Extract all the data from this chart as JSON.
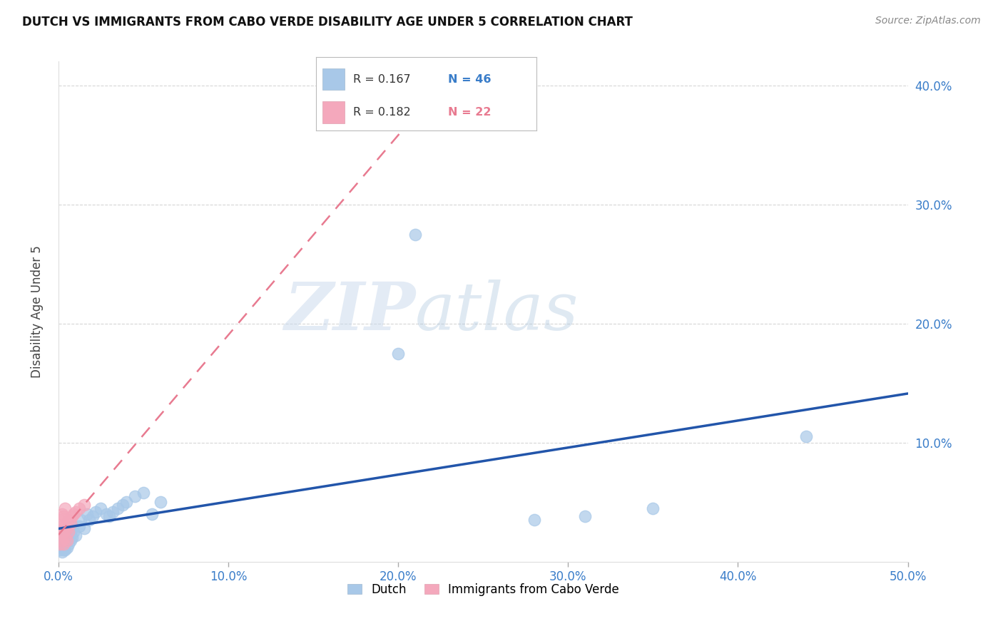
{
  "title": "DUTCH VS IMMIGRANTS FROM CABO VERDE DISABILITY AGE UNDER 5 CORRELATION CHART",
  "source": "Source: ZipAtlas.com",
  "ylabel": "Disability Age Under 5",
  "xlabel_dutch": "Dutch",
  "xlabel_cabo": "Immigrants from Cabo Verde",
  "x_min": 0.0,
  "x_max": 0.5,
  "y_min": 0.0,
  "y_max": 0.42,
  "x_ticks": [
    0.0,
    0.1,
    0.2,
    0.3,
    0.4,
    0.5
  ],
  "x_tick_labels": [
    "0.0%",
    "10.0%",
    "20.0%",
    "30.0%",
    "40.0%",
    "50.0%"
  ],
  "y_ticks": [
    0.1,
    0.2,
    0.3,
    0.4
  ],
  "y_tick_labels": [
    "10.0%",
    "20.0%",
    "30.0%",
    "40.0%"
  ],
  "dutch_color": "#a8c8e8",
  "cabo_color": "#f4a8bc",
  "trend_dutch_color": "#2255aa",
  "trend_cabo_color": "#e87a90",
  "legend_r_dutch": "R = 0.167",
  "legend_n_dutch": "N = 46",
  "legend_r_cabo": "R = 0.182",
  "legend_n_cabo": "N = 22",
  "dutch_x": [
    0.001,
    0.001,
    0.002,
    0.002,
    0.002,
    0.003,
    0.003,
    0.003,
    0.004,
    0.004,
    0.004,
    0.005,
    0.005,
    0.005,
    0.006,
    0.006,
    0.007,
    0.007,
    0.008,
    0.008,
    0.009,
    0.01,
    0.012,
    0.013,
    0.015,
    0.017,
    0.018,
    0.02,
    0.022,
    0.025,
    0.028,
    0.03,
    0.032,
    0.035,
    0.038,
    0.04,
    0.045,
    0.05,
    0.055,
    0.06,
    0.2,
    0.21,
    0.44,
    0.28,
    0.31,
    0.35
  ],
  "dutch_y": [
    0.01,
    0.015,
    0.008,
    0.012,
    0.02,
    0.01,
    0.015,
    0.022,
    0.01,
    0.018,
    0.025,
    0.012,
    0.02,
    0.028,
    0.015,
    0.022,
    0.018,
    0.025,
    0.02,
    0.03,
    0.025,
    0.022,
    0.03,
    0.035,
    0.028,
    0.04,
    0.035,
    0.038,
    0.042,
    0.045,
    0.04,
    0.038,
    0.042,
    0.045,
    0.048,
    0.05,
    0.055,
    0.058,
    0.04,
    0.05,
    0.175,
    0.275,
    0.105,
    0.035,
    0.038,
    0.045
  ],
  "cabo_x": [
    0.001,
    0.001,
    0.001,
    0.002,
    0.002,
    0.002,
    0.003,
    0.003,
    0.003,
    0.004,
    0.004,
    0.004,
    0.005,
    0.005,
    0.006,
    0.006,
    0.007,
    0.008,
    0.009,
    0.01,
    0.012,
    0.015
  ],
  "cabo_y": [
    0.015,
    0.025,
    0.035,
    0.018,
    0.03,
    0.04,
    0.015,
    0.025,
    0.038,
    0.02,
    0.03,
    0.045,
    0.018,
    0.028,
    0.025,
    0.035,
    0.032,
    0.038,
    0.04,
    0.042,
    0.045,
    0.048
  ],
  "background_color": "#ffffff",
  "watermark_zip": "ZIP",
  "watermark_atlas": "atlas",
  "grid_color": "#cccccc"
}
